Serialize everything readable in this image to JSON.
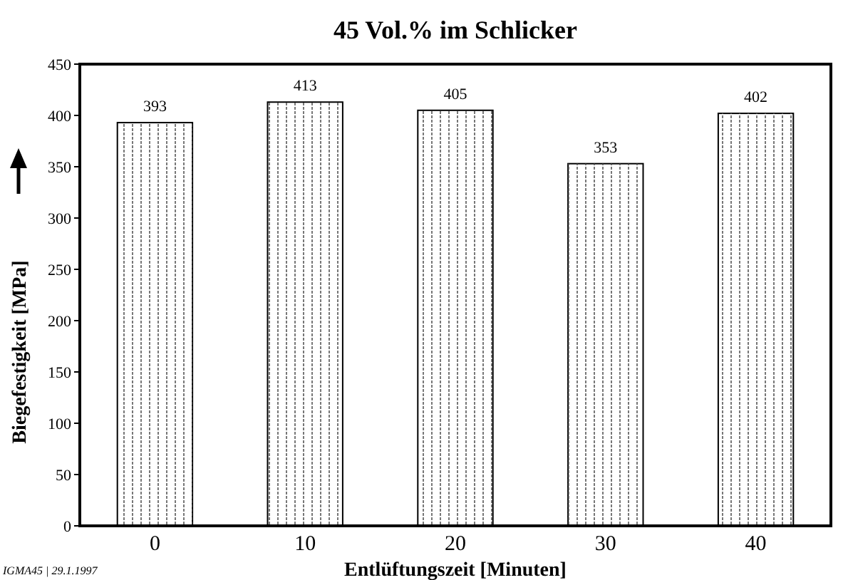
{
  "chart_data": {
    "type": "bar",
    "title": "45 Vol.% im Schlicker",
    "xlabel": "Entlüftungszeit  [Minuten]",
    "ylabel": "Biegefestigkeit [MPa]",
    "categories": [
      "0",
      "10",
      "20",
      "30",
      "40"
    ],
    "values": [
      393,
      413,
      405,
      353,
      402
    ],
    "color": "#ffffff",
    "data_labels": true,
    "ylim": [
      0,
      450
    ],
    "yticks": [
      0,
      50,
      100,
      150,
      200,
      250,
      300,
      350,
      400,
      450
    ],
    "grid": false,
    "annotations": [
      "IGMA45 | 29.1.1997"
    ]
  }
}
